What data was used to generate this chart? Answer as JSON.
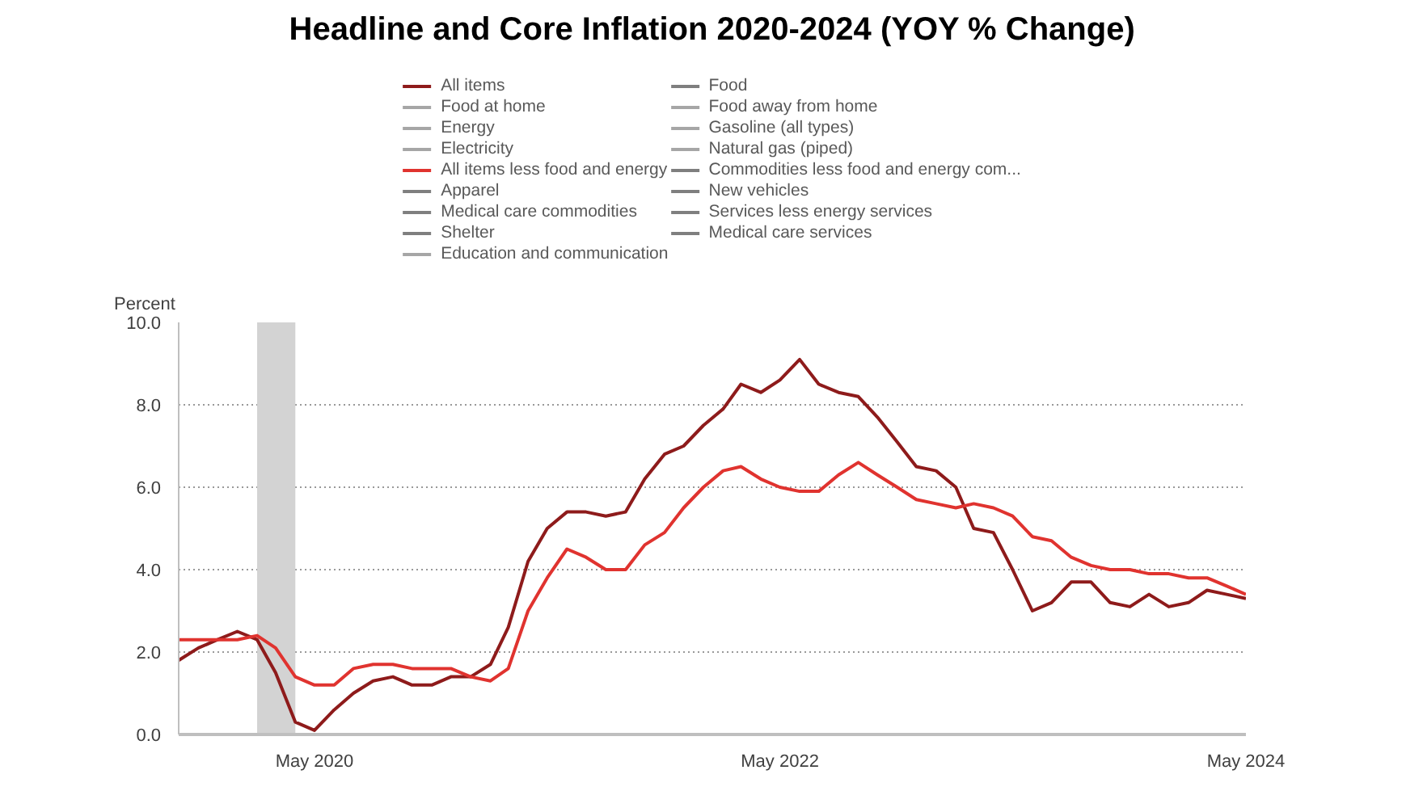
{
  "chart_data": {
    "type": "line",
    "title": "Headline and Core Inflation 2020-2024 (YOY % Change)",
    "ylabel": "Percent",
    "x": [
      "2019-10",
      "2019-11",
      "2019-12",
      "2020-01",
      "2020-02",
      "2020-03",
      "2020-04",
      "2020-05",
      "2020-06",
      "2020-07",
      "2020-08",
      "2020-09",
      "2020-10",
      "2020-11",
      "2020-12",
      "2021-01",
      "2021-02",
      "2021-03",
      "2021-04",
      "2021-05",
      "2021-06",
      "2021-07",
      "2021-08",
      "2021-09",
      "2021-10",
      "2021-11",
      "2021-12",
      "2022-01",
      "2022-02",
      "2022-03",
      "2022-04",
      "2022-05",
      "2022-06",
      "2022-07",
      "2022-08",
      "2022-09",
      "2022-10",
      "2022-11",
      "2022-12",
      "2023-01",
      "2023-02",
      "2023-03",
      "2023-04",
      "2023-05",
      "2023-06",
      "2023-07",
      "2023-08",
      "2023-09",
      "2023-10",
      "2023-11",
      "2023-12",
      "2024-01",
      "2024-02",
      "2024-03",
      "2024-04",
      "2024-05"
    ],
    "xlim": [
      "2019-10",
      "2024-05"
    ],
    "xticks": [
      {
        "value": "2020-05",
        "label": "May 2020"
      },
      {
        "value": "2022-05",
        "label": "May 2022"
      },
      {
        "value": "2024-05",
        "label": "May 2024"
      }
    ],
    "ylim": [
      0,
      10
    ],
    "yticks": [
      {
        "value": 0,
        "label": "0.0"
      },
      {
        "value": 2,
        "label": "2.0"
      },
      {
        "value": 4,
        "label": "4.0"
      },
      {
        "value": 6,
        "label": "6.0"
      },
      {
        "value": 8,
        "label": "8.0"
      },
      {
        "value": 10,
        "label": "10.0"
      }
    ],
    "grid": "y",
    "legend": "top",
    "marker": "none",
    "line_style": "solid",
    "bands": [
      {
        "axis": "x",
        "from": "2020-02",
        "to": "2020-04",
        "color": "#d3d3d3"
      }
    ],
    "series": [
      {
        "name": "All items",
        "color": "#8e1b1b",
        "values": [
          1.8,
          2.1,
          2.3,
          2.5,
          2.3,
          1.5,
          0.3,
          0.1,
          0.6,
          1.0,
          1.3,
          1.4,
          1.2,
          1.2,
          1.4,
          1.4,
          1.7,
          2.6,
          4.2,
          5.0,
          5.4,
          5.4,
          5.3,
          5.4,
          6.2,
          6.8,
          7.0,
          7.5,
          7.9,
          8.5,
          8.3,
          8.6,
          9.1,
          8.5,
          8.3,
          8.2,
          7.7,
          7.1,
          6.5,
          6.4,
          6.0,
          5.0,
          4.9,
          4.0,
          3.0,
          3.2,
          3.7,
          3.7,
          3.2,
          3.1,
          3.4,
          3.1,
          3.2,
          3.5,
          3.4,
          3.3
        ]
      },
      {
        "name": "Food",
        "color": "#7f7f7f",
        "values": [
          null,
          null,
          null,
          null,
          null,
          null,
          null,
          null,
          null,
          null,
          null,
          null,
          null,
          null,
          null,
          null,
          null,
          null,
          null,
          null,
          null,
          null,
          null,
          null,
          null,
          null,
          null,
          null,
          null,
          null,
          null,
          null,
          null,
          null,
          null,
          null,
          null,
          null,
          null,
          null,
          null,
          null,
          null,
          null,
          null,
          null,
          null,
          null,
          null,
          null,
          null,
          null,
          null,
          null,
          null,
          null
        ]
      },
      {
        "name": "Food at home",
        "color": "#a6a6a6",
        "values": [
          null,
          null,
          null,
          null,
          null,
          null,
          null,
          null,
          null,
          null,
          null,
          null,
          null,
          null,
          null,
          null,
          null,
          null,
          null,
          null,
          null,
          null,
          null,
          null,
          null,
          null,
          null,
          null,
          null,
          null,
          null,
          null,
          null,
          null,
          null,
          null,
          null,
          null,
          null,
          null,
          null,
          null,
          null,
          null,
          null,
          null,
          null,
          null,
          null,
          null,
          null,
          null,
          null,
          null,
          null,
          null
        ]
      },
      {
        "name": "Food away from home",
        "color": "#a6a6a6",
        "values": [
          null,
          null,
          null,
          null,
          null,
          null,
          null,
          null,
          null,
          null,
          null,
          null,
          null,
          null,
          null,
          null,
          null,
          null,
          null,
          null,
          null,
          null,
          null,
          null,
          null,
          null,
          null,
          null,
          null,
          null,
          null,
          null,
          null,
          null,
          null,
          null,
          null,
          null,
          null,
          null,
          null,
          null,
          null,
          null,
          null,
          null,
          null,
          null,
          null,
          null,
          null,
          null,
          null,
          null,
          null,
          null
        ]
      },
      {
        "name": "Energy",
        "color": "#a6a6a6",
        "values": [
          null,
          null,
          null,
          null,
          null,
          null,
          null,
          null,
          null,
          null,
          null,
          null,
          null,
          null,
          null,
          null,
          null,
          null,
          null,
          null,
          null,
          null,
          null,
          null,
          null,
          null,
          null,
          null,
          null,
          null,
          null,
          null,
          null,
          null,
          null,
          null,
          null,
          null,
          null,
          null,
          null,
          null,
          null,
          null,
          null,
          null,
          null,
          null,
          null,
          null,
          null,
          null,
          null,
          null,
          null,
          null
        ]
      },
      {
        "name": "Gasoline (all types)",
        "color": "#a6a6a6",
        "values": [
          null,
          null,
          null,
          null,
          null,
          null,
          null,
          null,
          null,
          null,
          null,
          null,
          null,
          null,
          null,
          null,
          null,
          null,
          null,
          null,
          null,
          null,
          null,
          null,
          null,
          null,
          null,
          null,
          null,
          null,
          null,
          null,
          null,
          null,
          null,
          null,
          null,
          null,
          null,
          null,
          null,
          null,
          null,
          null,
          null,
          null,
          null,
          null,
          null,
          null,
          null,
          null,
          null,
          null,
          null,
          null
        ]
      },
      {
        "name": "Electricity",
        "color": "#a6a6a6",
        "values": [
          null,
          null,
          null,
          null,
          null,
          null,
          null,
          null,
          null,
          null,
          null,
          null,
          null,
          null,
          null,
          null,
          null,
          null,
          null,
          null,
          null,
          null,
          null,
          null,
          null,
          null,
          null,
          null,
          null,
          null,
          null,
          null,
          null,
          null,
          null,
          null,
          null,
          null,
          null,
          null,
          null,
          null,
          null,
          null,
          null,
          null,
          null,
          null,
          null,
          null,
          null,
          null,
          null,
          null,
          null,
          null
        ]
      },
      {
        "name": "Natural gas (piped)",
        "color": "#a6a6a6",
        "values": [
          null,
          null,
          null,
          null,
          null,
          null,
          null,
          null,
          null,
          null,
          null,
          null,
          null,
          null,
          null,
          null,
          null,
          null,
          null,
          null,
          null,
          null,
          null,
          null,
          null,
          null,
          null,
          null,
          null,
          null,
          null,
          null,
          null,
          null,
          null,
          null,
          null,
          null,
          null,
          null,
          null,
          null,
          null,
          null,
          null,
          null,
          null,
          null,
          null,
          null,
          null,
          null,
          null,
          null,
          null,
          null
        ]
      },
      {
        "name": "All items less food and energy",
        "color": "#e0332f",
        "values": [
          2.3,
          2.3,
          2.3,
          2.3,
          2.4,
          2.1,
          1.4,
          1.2,
          1.2,
          1.6,
          1.7,
          1.7,
          1.6,
          1.6,
          1.6,
          1.4,
          1.3,
          1.6,
          3.0,
          3.8,
          4.5,
          4.3,
          4.0,
          4.0,
          4.6,
          4.9,
          5.5,
          6.0,
          6.4,
          6.5,
          6.2,
          6.0,
          5.9,
          5.9,
          6.3,
          6.6,
          6.3,
          6.0,
          5.7,
          5.6,
          5.5,
          5.6,
          5.5,
          5.3,
          4.8,
          4.7,
          4.3,
          4.1,
          4.0,
          4.0,
          3.9,
          3.9,
          3.8,
          3.8,
          3.6,
          3.4
        ]
      },
      {
        "name": "Commodities less food and energy com...",
        "color": "#7f7f7f",
        "values": [
          null,
          null,
          null,
          null,
          null,
          null,
          null,
          null,
          null,
          null,
          null,
          null,
          null,
          null,
          null,
          null,
          null,
          null,
          null,
          null,
          null,
          null,
          null,
          null,
          null,
          null,
          null,
          null,
          null,
          null,
          null,
          null,
          null,
          null,
          null,
          null,
          null,
          null,
          null,
          null,
          null,
          null,
          null,
          null,
          null,
          null,
          null,
          null,
          null,
          null,
          null,
          null,
          null,
          null,
          null,
          null
        ]
      },
      {
        "name": "Apparel",
        "color": "#7f7f7f",
        "values": [
          null,
          null,
          null,
          null,
          null,
          null,
          null,
          null,
          null,
          null,
          null,
          null,
          null,
          null,
          null,
          null,
          null,
          null,
          null,
          null,
          null,
          null,
          null,
          null,
          null,
          null,
          null,
          null,
          null,
          null,
          null,
          null,
          null,
          null,
          null,
          null,
          null,
          null,
          null,
          null,
          null,
          null,
          null,
          null,
          null,
          null,
          null,
          null,
          null,
          null,
          null,
          null,
          null,
          null,
          null,
          null
        ]
      },
      {
        "name": "New vehicles",
        "color": "#7f7f7f",
        "values": [
          null,
          null,
          null,
          null,
          null,
          null,
          null,
          null,
          null,
          null,
          null,
          null,
          null,
          null,
          null,
          null,
          null,
          null,
          null,
          null,
          null,
          null,
          null,
          null,
          null,
          null,
          null,
          null,
          null,
          null,
          null,
          null,
          null,
          null,
          null,
          null,
          null,
          null,
          null,
          null,
          null,
          null,
          null,
          null,
          null,
          null,
          null,
          null,
          null,
          null,
          null,
          null,
          null,
          null,
          null,
          null
        ]
      },
      {
        "name": "Medical care commodities",
        "color": "#7f7f7f",
        "values": [
          null,
          null,
          null,
          null,
          null,
          null,
          null,
          null,
          null,
          null,
          null,
          null,
          null,
          null,
          null,
          null,
          null,
          null,
          null,
          null,
          null,
          null,
          null,
          null,
          null,
          null,
          null,
          null,
          null,
          null,
          null,
          null,
          null,
          null,
          null,
          null,
          null,
          null,
          null,
          null,
          null,
          null,
          null,
          null,
          null,
          null,
          null,
          null,
          null,
          null,
          null,
          null,
          null,
          null,
          null,
          null
        ]
      },
      {
        "name": "Services less energy services",
        "color": "#7f7f7f",
        "values": [
          null,
          null,
          null,
          null,
          null,
          null,
          null,
          null,
          null,
          null,
          null,
          null,
          null,
          null,
          null,
          null,
          null,
          null,
          null,
          null,
          null,
          null,
          null,
          null,
          null,
          null,
          null,
          null,
          null,
          null,
          null,
          null,
          null,
          null,
          null,
          null,
          null,
          null,
          null,
          null,
          null,
          null,
          null,
          null,
          null,
          null,
          null,
          null,
          null,
          null,
          null,
          null,
          null,
          null,
          null,
          null
        ]
      },
      {
        "name": "Shelter",
        "color": "#7f7f7f",
        "values": [
          null,
          null,
          null,
          null,
          null,
          null,
          null,
          null,
          null,
          null,
          null,
          null,
          null,
          null,
          null,
          null,
          null,
          null,
          null,
          null,
          null,
          null,
          null,
          null,
          null,
          null,
          null,
          null,
          null,
          null,
          null,
          null,
          null,
          null,
          null,
          null,
          null,
          null,
          null,
          null,
          null,
          null,
          null,
          null,
          null,
          null,
          null,
          null,
          null,
          null,
          null,
          null,
          null,
          null,
          null,
          null
        ]
      },
      {
        "name": "Medical care services",
        "color": "#7f7f7f",
        "values": [
          null,
          null,
          null,
          null,
          null,
          null,
          null,
          null,
          null,
          null,
          null,
          null,
          null,
          null,
          null,
          null,
          null,
          null,
          null,
          null,
          null,
          null,
          null,
          null,
          null,
          null,
          null,
          null,
          null,
          null,
          null,
          null,
          null,
          null,
          null,
          null,
          null,
          null,
          null,
          null,
          null,
          null,
          null,
          null,
          null,
          null,
          null,
          null,
          null,
          null,
          null,
          null,
          null,
          null,
          null,
          null
        ]
      },
      {
        "name": "Education and communication",
        "color": "#a6a6a6",
        "values": [
          null,
          null,
          null,
          null,
          null,
          null,
          null,
          null,
          null,
          null,
          null,
          null,
          null,
          null,
          null,
          null,
          null,
          null,
          null,
          null,
          null,
          null,
          null,
          null,
          null,
          null,
          null,
          null,
          null,
          null,
          null,
          null,
          null,
          null,
          null,
          null,
          null,
          null,
          null,
          null,
          null,
          null,
          null,
          null,
          null,
          null,
          null,
          null,
          null,
          null,
          null,
          null,
          null,
          null,
          null,
          null
        ]
      }
    ]
  }
}
